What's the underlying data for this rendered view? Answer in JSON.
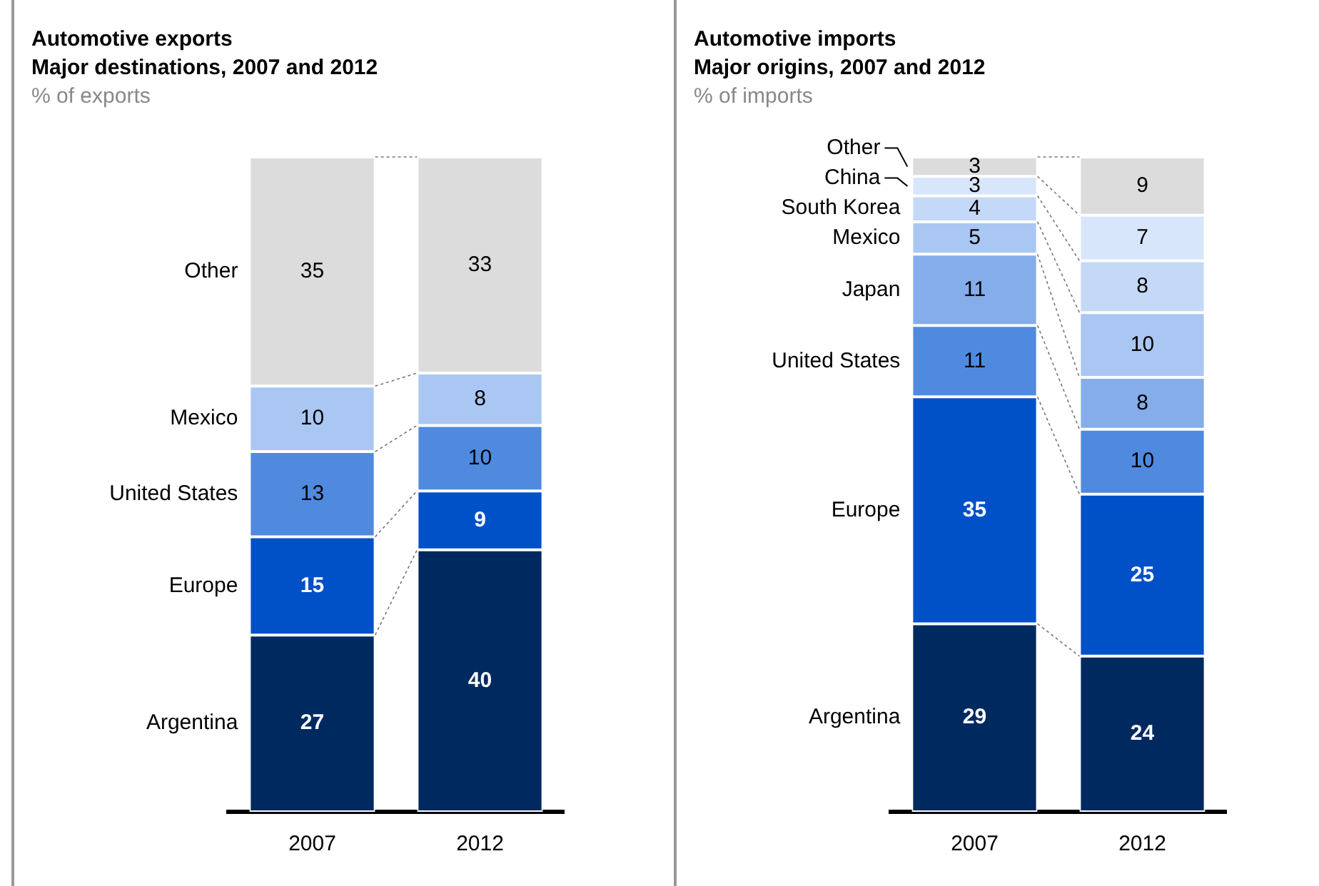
{
  "chart_data": [
    {
      "type": "bar",
      "title": "Automotive exports",
      "subtitle": "Major destinations, 2007 and 2012",
      "ylabel": "% of exports",
      "categories": [
        "2007",
        "2012"
      ],
      "stacked": true,
      "data_labels": true,
      "legend": false,
      "grid": false,
      "series": [
        {
          "name": "Argentina",
          "color": "#002960",
          "values": [
            27,
            40
          ]
        },
        {
          "name": "Europe",
          "color": "#0050c8",
          "values": [
            15,
            9
          ]
        },
        {
          "name": "United States",
          "color": "#4f8ade",
          "values": [
            13,
            10
          ]
        },
        {
          "name": "Mexico",
          "color": "#aac7f3",
          "values": [
            10,
            8
          ]
        },
        {
          "name": "Other",
          "color": "#dcdcdc",
          "values": [
            35,
            33
          ]
        }
      ]
    },
    {
      "type": "bar",
      "title": "Automotive imports",
      "subtitle": "Major origins, 2007 and 2012",
      "ylabel": "% of imports",
      "categories": [
        "2007",
        "2012"
      ],
      "stacked": true,
      "data_labels": true,
      "legend": false,
      "grid": false,
      "series": [
        {
          "name": "Argentina",
          "color": "#002960",
          "values": [
            29,
            24
          ]
        },
        {
          "name": "Europe",
          "color": "#0050c8",
          "values": [
            35,
            25
          ]
        },
        {
          "name": "United States",
          "color": "#4f8ade",
          "values": [
            11,
            10
          ]
        },
        {
          "name": "Japan",
          "color": "#84ade9",
          "values": [
            11,
            8
          ]
        },
        {
          "name": "Mexico",
          "color": "#aac7f3",
          "values": [
            5,
            10
          ]
        },
        {
          "name": "South Korea",
          "color": "#c4d9f7",
          "values": [
            4,
            8
          ]
        },
        {
          "name": "China",
          "color": "#d8e6fb",
          "values": [
            3,
            7
          ]
        },
        {
          "name": "Other",
          "color": "#dcdcdc",
          "values": [
            3,
            9
          ]
        }
      ]
    }
  ]
}
